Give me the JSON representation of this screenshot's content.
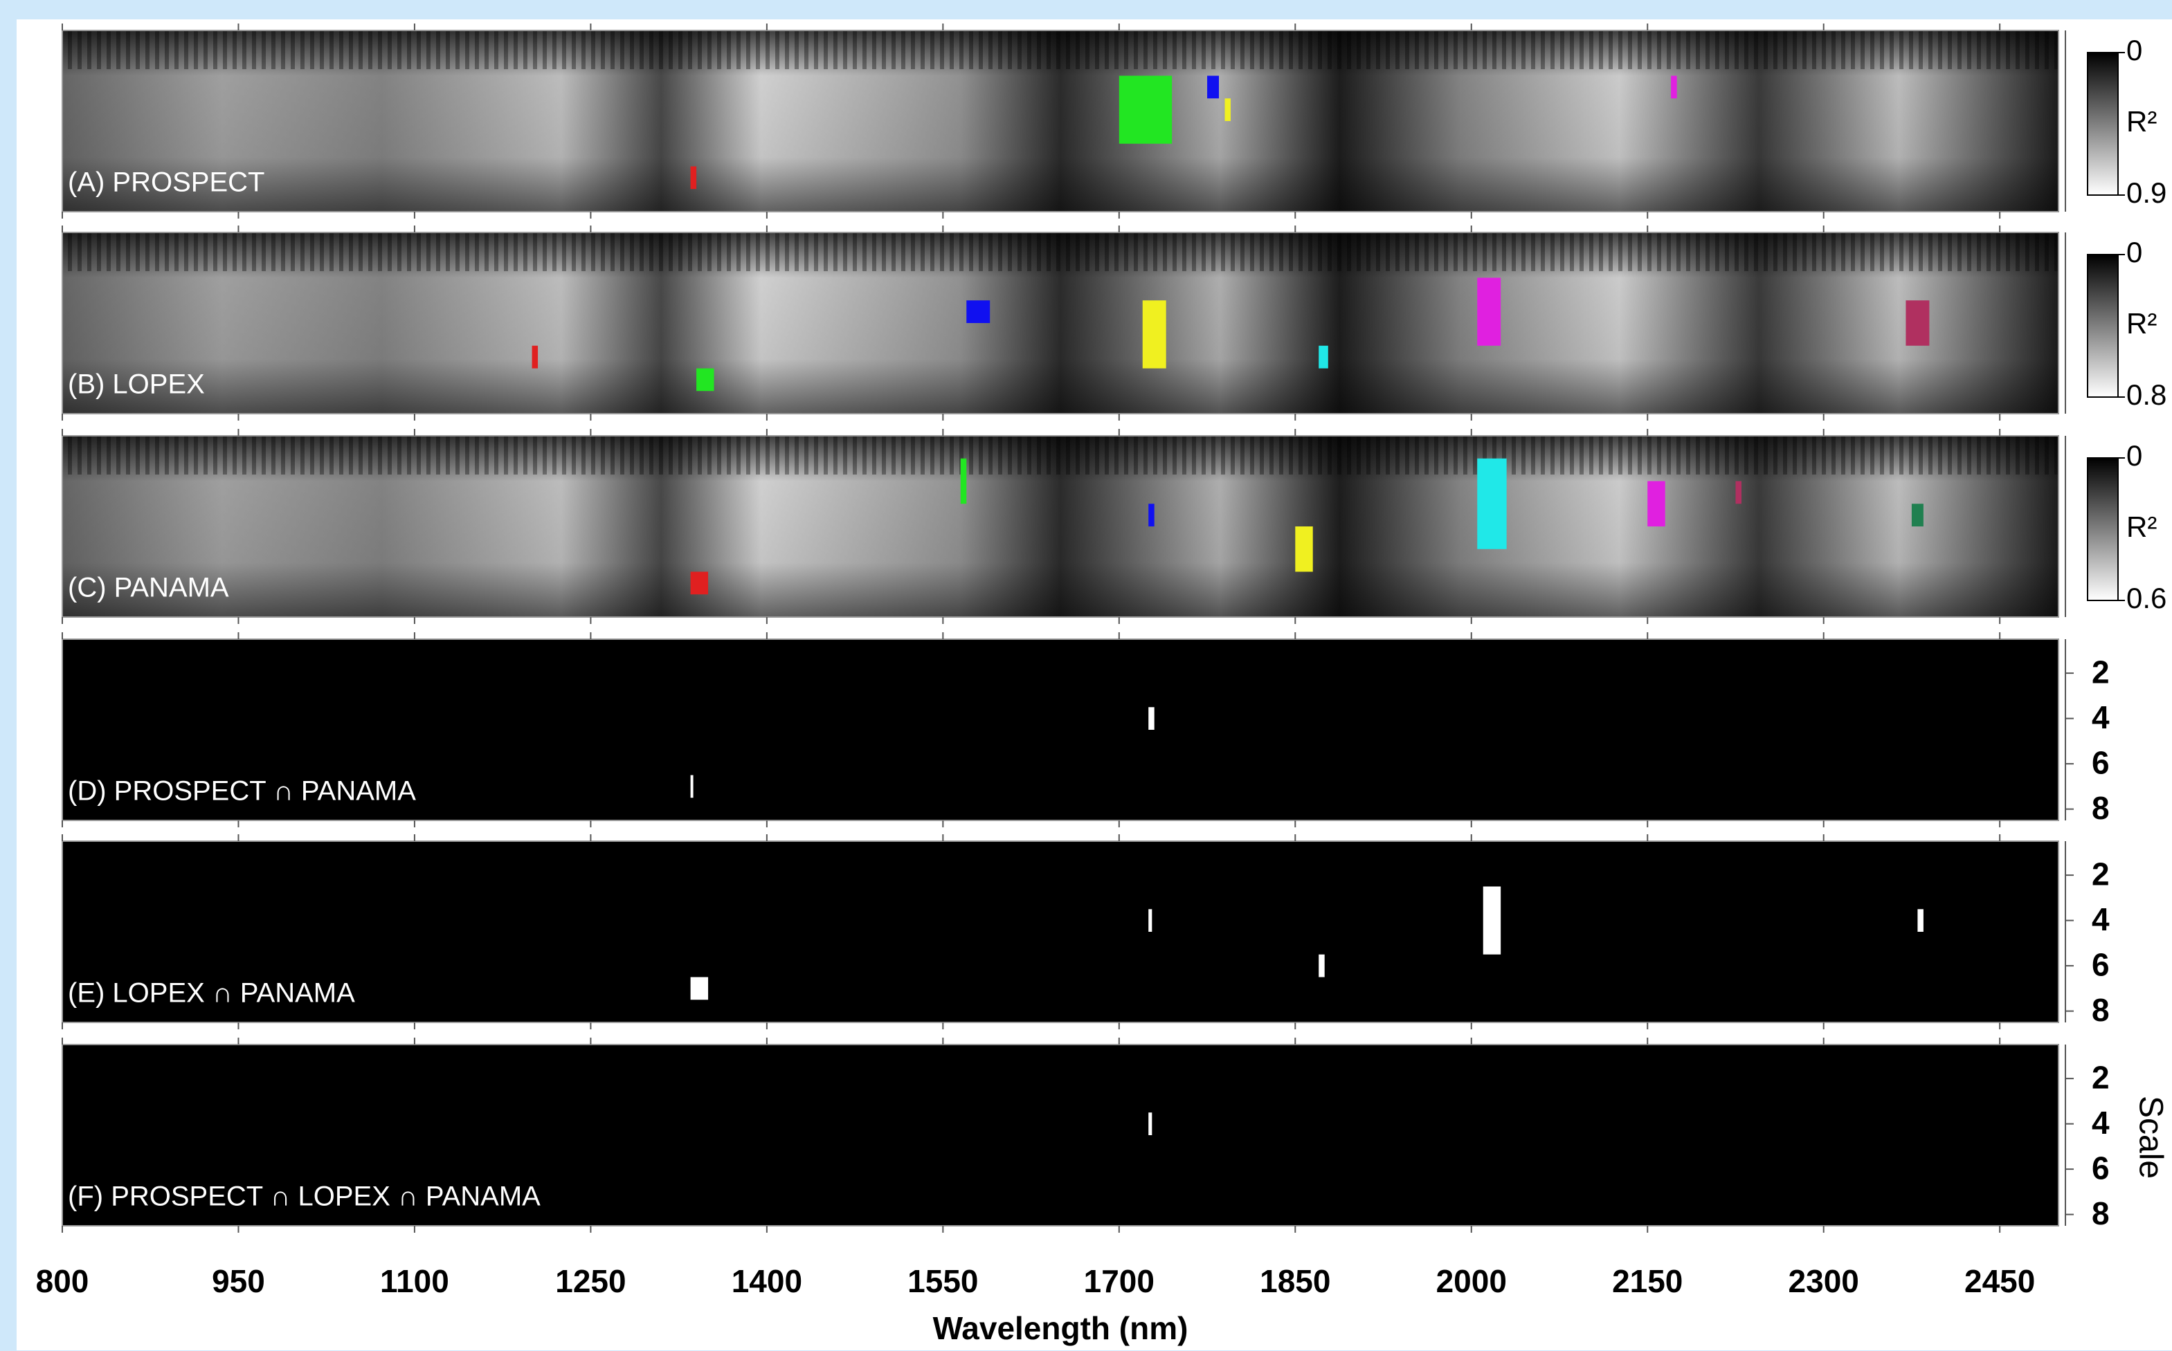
{
  "chart_data": [
    {
      "type": "heatmap",
      "label": "(A) PROSPECT",
      "ylim": [
        0.5,
        8.5
      ],
      "clim": [
        0,
        0.9
      ],
      "cticks": [
        0,
        0.9
      ],
      "clabel": "R²",
      "features": [
        {
          "x": [
            1700,
            1745
          ],
          "scale": [
            3,
            5
          ],
          "color": "#22e622"
        },
        {
          "x": [
            1775,
            1785
          ],
          "scale": [
            3,
            3
          ],
          "color": "#1010f0"
        },
        {
          "x": [
            1790,
            1795
          ],
          "scale": [
            4,
            4
          ],
          "color": "#f0f020"
        },
        {
          "x": [
            2170,
            2175
          ],
          "scale": [
            3,
            3
          ],
          "color": "#e020e0"
        },
        {
          "x": [
            1335,
            1340
          ],
          "scale": [
            7,
            7
          ],
          "color": "#e02020"
        }
      ]
    },
    {
      "type": "heatmap",
      "label": "(B) LOPEX",
      "ylim": [
        0.5,
        8.5
      ],
      "clim": [
        0,
        0.8
      ],
      "cticks": [
        0,
        0.8
      ],
      "clabel": "R²",
      "features": [
        {
          "x": [
            1570,
            1590
          ],
          "scale": [
            4,
            4
          ],
          "color": "#1010f0"
        },
        {
          "x": [
            1720,
            1740
          ],
          "scale": [
            4,
            6
          ],
          "color": "#f0f020"
        },
        {
          "x": [
            2005,
            2025
          ],
          "scale": [
            3,
            5
          ],
          "color": "#e020e0"
        },
        {
          "x": [
            2370,
            2390
          ],
          "scale": [
            4,
            5
          ],
          "color": "#b03060"
        },
        {
          "x": [
            1200,
            1205
          ],
          "scale": [
            6,
            6
          ],
          "color": "#e02020"
        },
        {
          "x": [
            1870,
            1878
          ],
          "scale": [
            6,
            6
          ],
          "color": "#20e8e8"
        },
        {
          "x": [
            1340,
            1355
          ],
          "scale": [
            7,
            7
          ],
          "color": "#22e622"
        }
      ]
    },
    {
      "type": "heatmap",
      "label": "(C) PANAMA",
      "ylim": [
        0.5,
        8.5
      ],
      "clim": [
        0,
        0.6
      ],
      "cticks": [
        0,
        0.6
      ],
      "clabel": "R²",
      "features": [
        {
          "x": [
            1565,
            1570
          ],
          "scale": [
            2,
            3
          ],
          "color": "#22e622"
        },
        {
          "x": [
            1725,
            1730
          ],
          "scale": [
            4,
            4
          ],
          "color": "#1010f0"
        },
        {
          "x": [
            1850,
            1865
          ],
          "scale": [
            5,
            6
          ],
          "color": "#f0f020"
        },
        {
          "x": [
            2005,
            2030
          ],
          "scale": [
            2,
            5
          ],
          "color": "#20e8e8"
        },
        {
          "x": [
            2150,
            2165
          ],
          "scale": [
            3,
            4
          ],
          "color": "#e020e0"
        },
        {
          "x": [
            2225,
            2230
          ],
          "scale": [
            3,
            3
          ],
          "color": "#b03060"
        },
        {
          "x": [
            2375,
            2385
          ],
          "scale": [
            4,
            4
          ],
          "color": "#208050"
        },
        {
          "x": [
            1335,
            1350
          ],
          "scale": [
            7,
            7
          ],
          "color": "#e02020"
        }
      ]
    },
    {
      "type": "mask",
      "label": "(D) PROSPECT ∩ PANAMA",
      "ylim": [
        0.5,
        8.5
      ],
      "yticks": [
        2,
        4,
        6,
        8
      ],
      "features": [
        {
          "x": [
            1725,
            1730
          ],
          "scale": [
            4,
            4
          ],
          "color": "#ffffff"
        },
        {
          "x": [
            1335,
            1336
          ],
          "scale": [
            7,
            7
          ],
          "color": "#ffffff"
        }
      ]
    },
    {
      "type": "mask",
      "label": "(E) LOPEX ∩ PANAMA",
      "ylim": [
        0.5,
        8.5
      ],
      "yticks": [
        2,
        4,
        6,
        8
      ],
      "features": [
        {
          "x": [
            1725,
            1728
          ],
          "scale": [
            4,
            4
          ],
          "color": "#ffffff"
        },
        {
          "x": [
            2010,
            2025
          ],
          "scale": [
            3,
            5
          ],
          "color": "#ffffff"
        },
        {
          "x": [
            1870,
            1875
          ],
          "scale": [
            6,
            6
          ],
          "color": "#ffffff"
        },
        {
          "x": [
            1335,
            1350
          ],
          "scale": [
            7,
            7
          ],
          "color": "#ffffff"
        },
        {
          "x": [
            2380,
            2385
          ],
          "scale": [
            4,
            4
          ],
          "color": "#ffffff"
        }
      ]
    },
    {
      "type": "mask",
      "label": "(F) PROSPECT ∩ LOPEX ∩ PANAMA",
      "ylim": [
        0.5,
        8.5
      ],
      "yticks": [
        2,
        4,
        6,
        8
      ],
      "ylabel": "Scale",
      "xlabel": "Wavelength (nm)",
      "xlim": [
        800,
        2500
      ],
      "xticks": [
        800,
        950,
        1100,
        1250,
        1400,
        1550,
        1700,
        1850,
        2000,
        2150,
        2300,
        2450
      ],
      "features": [
        {
          "x": [
            1725,
            1728
          ],
          "scale": [
            4,
            4
          ],
          "color": "#ffffff"
        }
      ]
    }
  ]
}
